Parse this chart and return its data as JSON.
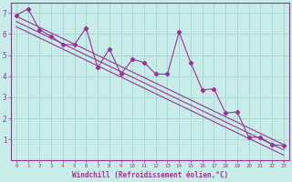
{
  "bg_color": "#c8ece8",
  "grid_color": "#a8d8d4",
  "line_color": "#993399",
  "xlabel": "Windchill (Refroidissement éolien,°C)",
  "ylim": [
    0.0,
    7.5
  ],
  "xlim": [
    -0.5,
    23.5
  ],
  "yticks": [
    1,
    2,
    3,
    4,
    5,
    6,
    7
  ],
  "xticks": [
    0,
    1,
    2,
    3,
    4,
    5,
    6,
    7,
    8,
    9,
    10,
    11,
    12,
    13,
    14,
    15,
    16,
    17,
    18,
    19,
    20,
    21,
    22,
    23
  ],
  "series_jagged": {
    "x": [
      0,
      1,
      2,
      3,
      4,
      5,
      6,
      7,
      8,
      9,
      10,
      11,
      12,
      13,
      14,
      15,
      16,
      17,
      18,
      19,
      20,
      21,
      22,
      23
    ],
    "y": [
      6.9,
      7.2,
      6.2,
      5.9,
      5.5,
      5.5,
      6.3,
      4.4,
      5.3,
      4.1,
      4.8,
      4.65,
      4.1,
      4.1,
      6.1,
      4.65,
      3.35,
      3.4,
      2.25,
      2.3,
      1.1,
      1.1,
      0.75,
      0.7
    ]
  },
  "trend_lines": [
    {
      "x": [
        0,
        23
      ],
      "y": [
        6.85,
        0.75
      ]
    },
    {
      "x": [
        0,
        23
      ],
      "y": [
        6.6,
        0.5
      ]
    },
    {
      "x": [
        0,
        23
      ],
      "y": [
        6.35,
        0.25
      ]
    }
  ]
}
